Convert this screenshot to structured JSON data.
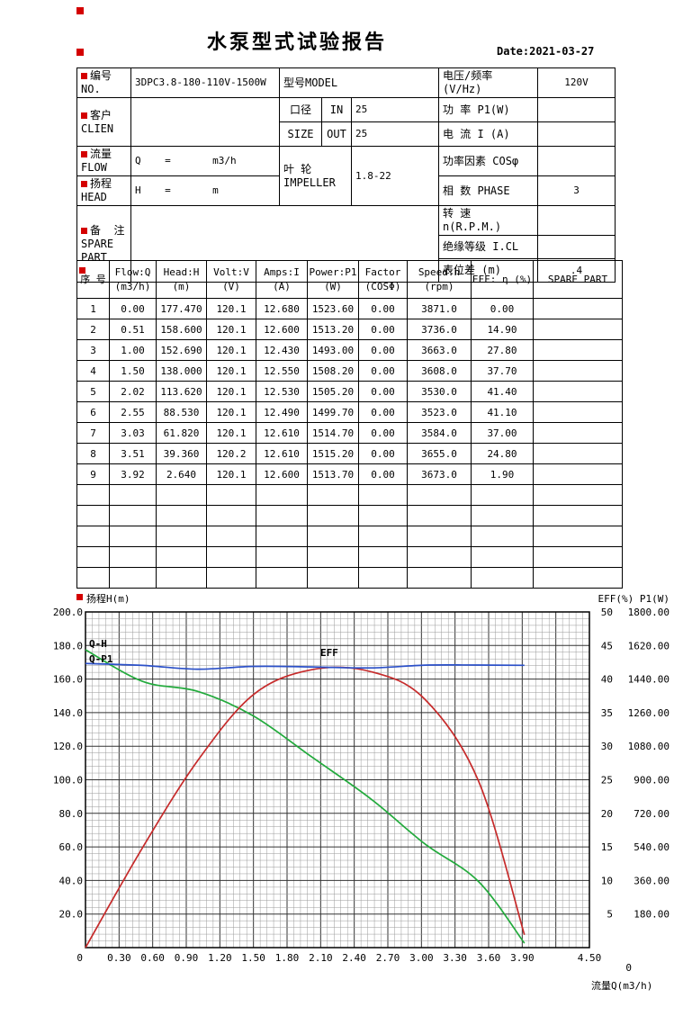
{
  "page": {
    "title": "水泵型式试验报告",
    "date": "Date:2021-03-27"
  },
  "header": {
    "no_label": "编号 NO.",
    "no_value": "3DPC3.8-180-110V-1500W",
    "model_label": "型号MODEL",
    "voltage_label": "电压/频率 (V/Hz)",
    "voltage_value": "120V",
    "customer_label": "客户 CLIEN",
    "customer_value": "",
    "bore_label": "口径",
    "size_label": "SIZE",
    "in_label": "IN",
    "in_value": "25",
    "out_label": "OUT",
    "out_value": "25",
    "power_label": "功 率  P1(W)",
    "power_value": "",
    "current_label": "电 流  I (A)",
    "current_value": "",
    "flow_label": "流量 FLOW",
    "flow_value": "Q    =       m3/h",
    "impeller_label": "叶 轮\nIMPELLER",
    "impeller_value": "1.8-22",
    "factor_label": "功率因素  COSφ",
    "factor_value": "",
    "head_label": "扬程 HEAD",
    "head_value": "H    =       m",
    "phase_label": "相 数  PHASE",
    "phase_value": "3",
    "remark_label": "备  注\nSPARE PART",
    "remark_value": "",
    "speed_label": "转 速 n(R.P.M.)",
    "speed_value": "",
    "insulation_label": "绝缘等级  I.CL",
    "insulation_value": "",
    "gauge_label": "表位差 (m)",
    "gauge_value": ".4"
  },
  "table": {
    "columns": [
      {
        "l1": "序 号",
        "l2": ""
      },
      {
        "l1": "Flow:Q",
        "l2": "(m3/h)"
      },
      {
        "l1": "Head:H",
        "l2": "(m)"
      },
      {
        "l1": "Volt:V",
        "l2": "(V)"
      },
      {
        "l1": "Amps:I",
        "l2": "(A)"
      },
      {
        "l1": "Power:P1",
        "l2": "(W)"
      },
      {
        "l1": "Factor",
        "l2": "(COSΦ)"
      },
      {
        "l1": "Speed:n",
        "l2": "(rpm)"
      },
      {
        "l1": "EFF: η (%)",
        "l2": ""
      },
      {
        "l1": "SPARE PART",
        "l2": ""
      }
    ],
    "rows": [
      [
        "1",
        "0.00",
        "177.470",
        "120.1",
        "12.680",
        "1523.60",
        "0.00",
        "3871.0",
        "0.00",
        ""
      ],
      [
        "2",
        "0.51",
        "158.600",
        "120.1",
        "12.600",
        "1513.20",
        "0.00",
        "3736.0",
        "14.90",
        ""
      ],
      [
        "3",
        "1.00",
        "152.690",
        "120.1",
        "12.430",
        "1493.00",
        "0.00",
        "3663.0",
        "27.80",
        ""
      ],
      [
        "4",
        "1.50",
        "138.000",
        "120.1",
        "12.550",
        "1508.20",
        "0.00",
        "3608.0",
        "37.70",
        ""
      ],
      [
        "5",
        "2.02",
        "113.620",
        "120.1",
        "12.530",
        "1505.20",
        "0.00",
        "3530.0",
        "41.40",
        ""
      ],
      [
        "6",
        "2.55",
        "88.530",
        "120.1",
        "12.490",
        "1499.70",
        "0.00",
        "3523.0",
        "41.10",
        ""
      ],
      [
        "7",
        "3.03",
        "61.820",
        "120.1",
        "12.610",
        "1514.70",
        "0.00",
        "3584.0",
        "37.00",
        ""
      ],
      [
        "8",
        "3.51",
        "39.360",
        "120.2",
        "12.610",
        "1515.20",
        "0.00",
        "3655.0",
        "24.80",
        ""
      ],
      [
        "9",
        "3.92",
        "2.640",
        "120.1",
        "12.600",
        "1513.70",
        "0.00",
        "3673.0",
        "1.90",
        ""
      ]
    ],
    "empty_rows": 5
  },
  "chart_data": {
    "type": "line",
    "x_axis": {
      "label": "流量Q(m3/h)",
      "min": 0,
      "max": 4.5,
      "tick_labels": [
        "0.30",
        "0.60",
        "0.90",
        "1.20",
        "1.50",
        "1.80",
        "2.10",
        "2.40",
        "2.70",
        "3.00",
        "3.30",
        "3.60",
        "3.90",
        "4.50"
      ],
      "origin_label": "0"
    },
    "y_left": {
      "label": "扬程H(m)",
      "min": 0,
      "max": 200,
      "tick_labels": [
        "200.0",
        "180.0",
        "160.0",
        "140.0",
        "120.0",
        "100.0",
        "80.0",
        "60.0",
        "40.0",
        "20.0"
      ],
      "origin_label": "0"
    },
    "y_right_eff": {
      "label": "EFF(%)",
      "min": 0,
      "max": 50,
      "tick_labels": [
        "50",
        "45",
        "40",
        "35",
        "30",
        "25",
        "20",
        "15",
        "10",
        "5"
      ],
      "origin_label": "0"
    },
    "y_right_p1": {
      "label": "P1(W)",
      "min": 0,
      "max": 1800,
      "tick_labels": [
        "1800.00",
        "1620.00",
        "1440.00",
        "1260.00",
        "1080.00",
        "900.00",
        "720.00",
        "540.00",
        "360.00",
        "180.00"
      ]
    },
    "right_axis_title": "EFF(%) P1(W)",
    "grid": {
      "x_minor_divisions": 75,
      "y_minor_divisions": 50,
      "x_major_every": 5,
      "y_major_every": 5
    },
    "series": [
      {
        "name": "Q-H",
        "axis": "left",
        "color": "#22aa3c",
        "x": [
          0,
          0.51,
          1.0,
          1.5,
          2.02,
          2.55,
          3.03,
          3.51,
          3.92
        ],
        "y": [
          177.47,
          158.6,
          152.69,
          138.0,
          113.62,
          88.53,
          61.82,
          39.36,
          2.64
        ]
      },
      {
        "name": "EFF",
        "axis": "eff",
        "color": "#c62b2b",
        "x": [
          0,
          0.51,
          1.0,
          1.5,
          2.02,
          2.55,
          3.03,
          3.51,
          3.92
        ],
        "y": [
          0.0,
          14.9,
          27.8,
          37.7,
          41.4,
          41.1,
          37.0,
          24.8,
          1.9
        ]
      },
      {
        "name": "Q-P1",
        "axis": "p1",
        "color": "#2b50c8",
        "x": [
          0,
          0.51,
          1.0,
          1.5,
          2.02,
          2.55,
          3.03,
          3.51,
          3.92
        ],
        "y": [
          1523.6,
          1513.2,
          1493.0,
          1508.2,
          1505.2,
          1499.7,
          1514.7,
          1515.2,
          1513.7
        ]
      }
    ],
    "annotations": [
      {
        "text": "Q-H",
        "color": "#22aa3c",
        "sx": 99,
        "sy": 64
      },
      {
        "text": "Q-P1",
        "color": "#2b50c8",
        "sx": 99,
        "sy": 81
      },
      {
        "text": "EFF",
        "color": "#c62b2b",
        "sx": 356,
        "sy": 74
      }
    ]
  }
}
